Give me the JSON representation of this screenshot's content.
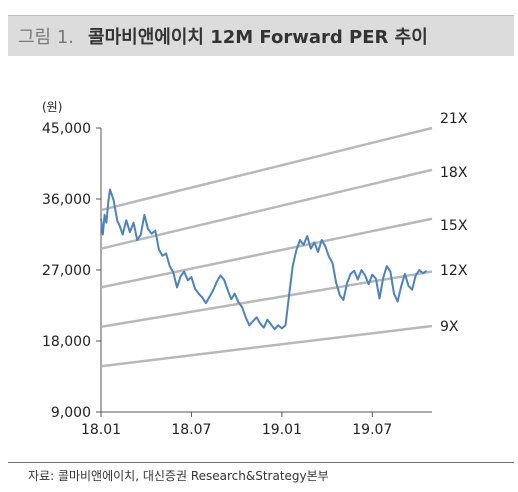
{
  "title": {
    "number": "그림 1.",
    "text": "콜마비앤에이치 12M Forward PER 추이"
  },
  "source": "자료: 콜마비앤에이치, 대신증권 Research&Strategy본부",
  "chart_data": {
    "type": "line",
    "unit_label": "(원)",
    "y_ticks": [
      "45,000",
      "36,000",
      "27,000",
      "18,000",
      "9,000"
    ],
    "y_tick_values": [
      45000,
      36000,
      27000,
      18000,
      9000
    ],
    "ylim": [
      9000,
      45000
    ],
    "x_ticks": [
      "18.01",
      "18.07",
      "19.01",
      "19.07"
    ],
    "x_tick_positions": [
      2018.0,
      2018.5,
      2019.0,
      2019.5
    ],
    "xlim": [
      2018.0,
      2019.83
    ],
    "band_color": "#b8b8b8",
    "price_color": "#4a82c4",
    "bands": [
      {
        "name": "21X",
        "start": 34600,
        "end": 45000
      },
      {
        "name": "18X",
        "start": 29700,
        "end": 39700
      },
      {
        "name": "15X",
        "start": 24800,
        "end": 33500
      },
      {
        "name": "12X",
        "start": 19800,
        "end": 26800
      },
      {
        "name": "9X",
        "start": 14800,
        "end": 19900
      }
    ],
    "price": {
      "x": [
        2018.0,
        2018.01,
        2018.02,
        2018.03,
        2018.04,
        2018.05,
        2018.06,
        2018.07,
        2018.08,
        2018.09,
        2018.1,
        2018.12,
        2018.14,
        2018.16,
        2018.18,
        2018.2,
        2018.22,
        2018.24,
        2018.26,
        2018.28,
        2018.3,
        2018.32,
        2018.34,
        2018.36,
        2018.38,
        2018.4,
        2018.42,
        2018.44,
        2018.46,
        2018.48,
        2018.5,
        2018.52,
        2018.54,
        2018.56,
        2018.58,
        2018.6,
        2018.62,
        2018.64,
        2018.66,
        2018.68,
        2018.7,
        2018.72,
        2018.74,
        2018.76,
        2018.78,
        2018.8,
        2018.82,
        2018.84,
        2018.86,
        2018.88,
        2018.9,
        2018.92,
        2018.94,
        2018.96,
        2018.98,
        2019.0,
        2019.02,
        2019.04,
        2019.06,
        2019.08,
        2019.1,
        2019.12,
        2019.14,
        2019.16,
        2019.18,
        2019.2,
        2019.22,
        2019.24,
        2019.26,
        2019.28,
        2019.3,
        2019.32,
        2019.34,
        2019.36,
        2019.38,
        2019.4,
        2019.42,
        2019.44,
        2019.46,
        2019.48,
        2019.5,
        2019.52,
        2019.54,
        2019.56,
        2019.58,
        2019.6,
        2019.62,
        2019.64,
        2019.66,
        2019.68,
        2019.7,
        2019.72,
        2019.74,
        2019.76,
        2019.78,
        2019.8
      ],
      "y": [
        33500,
        31500,
        34000,
        33000,
        35500,
        37200,
        36500,
        35800,
        34500,
        33200,
        32800,
        31500,
        33300,
        31800,
        33000,
        30800,
        31500,
        34000,
        32200,
        31600,
        32000,
        29600,
        28800,
        29100,
        27500,
        26700,
        24800,
        26200,
        26800,
        25700,
        26100,
        24600,
        24000,
        23500,
        22800,
        23600,
        24400,
        25500,
        26300,
        25800,
        24500,
        23300,
        24000,
        22900,
        22300,
        21000,
        20000,
        20500,
        21000,
        20200,
        19700,
        20700,
        20100,
        19500,
        20000,
        19600,
        20000,
        23800,
        27500,
        29500,
        30800,
        30200,
        31300,
        29700,
        30500,
        29300,
        30800,
        30000,
        28700,
        27900,
        25400,
        23800,
        23200,
        25300,
        26500,
        26900,
        25800,
        27000,
        26300,
        25200,
        26400,
        25900,
        23400,
        26000,
        27500,
        26800,
        24000,
        23000,
        25000,
        26500,
        25000,
        24500,
        26300,
        27000,
        26600,
        26900
      ]
    }
  }
}
